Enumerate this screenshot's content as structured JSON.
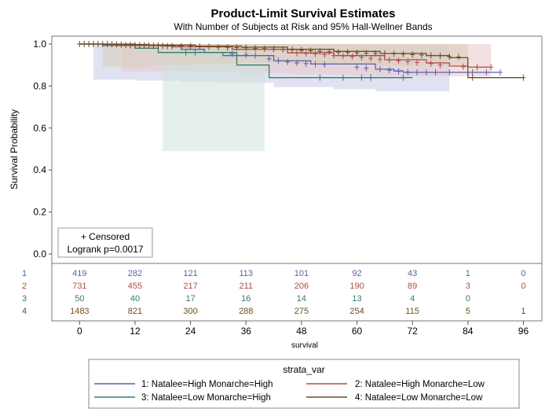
{
  "chart_data": {
    "type": "line",
    "title": "Product-Limit Survival Estimates",
    "subtitle": "With Number of Subjects at Risk and 95% Hall-Wellner Bands",
    "xlabel": "survival",
    "ylabel": "Survival Probability",
    "xlim": [
      -6,
      100
    ],
    "ylim": [
      0,
      1.0
    ],
    "xticks": [
      0,
      12,
      24,
      36,
      48,
      60,
      72,
      84,
      96
    ],
    "yticks": [
      0.0,
      0.2,
      0.4,
      0.6,
      0.8,
      1.0
    ],
    "inset": {
      "censored_label": "+ Censored",
      "logrank_label": "Logrank p=0.0017"
    },
    "legend": {
      "title": "strata_var"
    },
    "series": [
      {
        "id": "1",
        "name": "1: Natalee=High Monarche=High",
        "color": "#5a5fb0",
        "band_color": "#c9cbe6",
        "at_risk": [
          "419",
          "282",
          "121",
          "113",
          "101",
          "92",
          "43",
          "1",
          "0"
        ],
        "curve": [
          [
            0,
            1.0
          ],
          [
            5,
            0.993
          ],
          [
            22,
            0.975
          ],
          [
            27,
            0.96
          ],
          [
            31,
            0.945
          ],
          [
            42,
            0.92
          ],
          [
            50,
            0.905
          ],
          [
            64,
            0.88
          ],
          [
            68,
            0.872
          ],
          [
            70,
            0.865
          ],
          [
            91,
            0.865
          ]
        ],
        "band": [
          [
            3,
            0.83
          ],
          [
            12,
            0.83
          ],
          [
            22,
            0.826
          ],
          [
            30,
            0.82
          ],
          [
            42,
            0.815
          ],
          [
            55,
            0.795
          ],
          [
            64,
            0.785
          ],
          [
            70,
            0.775
          ],
          [
            80,
            0.775
          ]
        ],
        "censored": [
          [
            33,
            0.953
          ],
          [
            36,
            0.948
          ],
          [
            38,
            0.945
          ],
          [
            41,
            0.93
          ],
          [
            43,
            0.92
          ],
          [
            45,
            0.915
          ],
          [
            47,
            0.91
          ],
          [
            49,
            0.907
          ],
          [
            51,
            0.905
          ],
          [
            53,
            0.903
          ],
          [
            60,
            0.89
          ],
          [
            62,
            0.885
          ],
          [
            65,
            0.88
          ],
          [
            67,
            0.875
          ],
          [
            69,
            0.87
          ],
          [
            71,
            0.867
          ],
          [
            73,
            0.865
          ],
          [
            75,
            0.865
          ],
          [
            77,
            0.865
          ],
          [
            80,
            0.865
          ],
          [
            85,
            0.865
          ],
          [
            88,
            0.865
          ],
          [
            91,
            0.865
          ]
        ]
      },
      {
        "id": "2",
        "name": "2: Natalee=High Monarche=Low",
        "color": "#b24a4a",
        "band_color": "#e9c9c9",
        "at_risk": [
          "731",
          "455",
          "217",
          "211",
          "206",
          "190",
          "89",
          "3",
          "0"
        ],
        "curve": [
          [
            0,
            1.0
          ],
          [
            8,
            0.994
          ],
          [
            20,
            0.987
          ],
          [
            33,
            0.975
          ],
          [
            45,
            0.958
          ],
          [
            55,
            0.945
          ],
          [
            66,
            0.925
          ],
          [
            75,
            0.91
          ],
          [
            80,
            0.895
          ],
          [
            84,
            0.89
          ],
          [
            89,
            0.89
          ]
        ],
        "band": [
          [
            9,
            0.87
          ],
          [
            20,
            0.87
          ],
          [
            34,
            0.866
          ],
          [
            46,
            0.86
          ],
          [
            58,
            0.855
          ],
          [
            66,
            0.85
          ],
          [
            75,
            0.846
          ],
          [
            84,
            0.846
          ],
          [
            89,
            0.846
          ]
        ],
        "censored": [
          [
            47,
            0.957
          ],
          [
            49,
            0.955
          ],
          [
            51,
            0.953
          ],
          [
            53,
            0.95
          ],
          [
            55,
            0.945
          ],
          [
            57,
            0.943
          ],
          [
            59,
            0.94
          ],
          [
            61,
            0.937
          ],
          [
            63,
            0.932
          ],
          [
            65,
            0.928
          ],
          [
            67,
            0.924
          ],
          [
            69,
            0.92
          ],
          [
            71,
            0.916
          ],
          [
            73,
            0.912
          ],
          [
            76,
            0.907
          ],
          [
            78,
            0.9
          ],
          [
            83,
            0.892
          ],
          [
            86,
            0.89
          ],
          [
            89,
            0.89
          ]
        ]
      },
      {
        "id": "3",
        "name": "3: Natalee=Low Monarche=High",
        "color": "#2f7f72",
        "band_color": "#cfe1dc",
        "at_risk": [
          "50",
          "40",
          "17",
          "16",
          "14",
          "13",
          "4",
          "0",
          ""
        ],
        "curve": [
          [
            0,
            1.0
          ],
          [
            12,
            0.98
          ],
          [
            17,
            0.96
          ],
          [
            34,
            0.9
          ],
          [
            41,
            0.84
          ],
          [
            50,
            0.84
          ],
          [
            72,
            0.84
          ]
        ],
        "band": [
          [
            18,
            0.49
          ],
          [
            40,
            0.49
          ]
        ],
        "censored": [
          [
            23,
            0.96
          ],
          [
            25,
            0.96
          ],
          [
            52,
            0.84
          ],
          [
            57,
            0.84
          ],
          [
            61,
            0.84
          ],
          [
            63,
            0.84
          ],
          [
            70,
            0.84
          ]
        ]
      },
      {
        "id": "4",
        "name": "4: Natalee=Low Monarche=Low",
        "color": "#6e4c20",
        "band_color": "#d9cdb9",
        "at_risk": [
          "1483",
          "821",
          "300",
          "288",
          "275",
          "254",
          "115",
          "5",
          "1"
        ],
        "curve": [
          [
            0,
            1.0
          ],
          [
            5,
            0.998
          ],
          [
            15,
            0.995
          ],
          [
            25,
            0.99
          ],
          [
            35,
            0.985
          ],
          [
            45,
            0.975
          ],
          [
            55,
            0.965
          ],
          [
            65,
            0.955
          ],
          [
            75,
            0.945
          ],
          [
            80,
            0.935
          ],
          [
            84,
            0.84
          ],
          [
            96,
            0.84
          ]
        ],
        "band": [
          [
            5,
            0.89
          ],
          [
            15,
            0.89
          ],
          [
            25,
            0.9
          ],
          [
            35,
            0.905
          ],
          [
            45,
            0.91
          ],
          [
            55,
            0.905
          ],
          [
            65,
            0.9
          ],
          [
            75,
            0.895
          ],
          [
            82,
            0.9
          ],
          [
            84,
            0.9
          ]
        ],
        "censored": [
          [
            0,
            1.0
          ],
          [
            1,
            1.0
          ],
          [
            2,
            1.0
          ],
          [
            3,
            1.0
          ],
          [
            4,
            1.0
          ],
          [
            5,
            1.0
          ],
          [
            6,
            1.0
          ],
          [
            7,
            0.999
          ],
          [
            8,
            0.998
          ],
          [
            9,
            0.997
          ],
          [
            10,
            0.996
          ],
          [
            11,
            0.995
          ],
          [
            12,
            0.995
          ],
          [
            13,
            0.995
          ],
          [
            14,
            0.994
          ],
          [
            15,
            0.993
          ],
          [
            16,
            0.992
          ],
          [
            17,
            0.992
          ],
          [
            18,
            0.991
          ],
          [
            19,
            0.99
          ],
          [
            20,
            0.99
          ],
          [
            22,
            0.99
          ],
          [
            24,
            0.99
          ],
          [
            26,
            0.988
          ],
          [
            28,
            0.987
          ],
          [
            30,
            0.985
          ],
          [
            32,
            0.984
          ],
          [
            34,
            0.983
          ],
          [
            36,
            0.982
          ],
          [
            38,
            0.98
          ],
          [
            40,
            0.978
          ],
          [
            42,
            0.976
          ],
          [
            44,
            0.975
          ],
          [
            46,
            0.973
          ],
          [
            48,
            0.97
          ],
          [
            50,
            0.968
          ],
          [
            52,
            0.965
          ],
          [
            54,
            0.963
          ],
          [
            56,
            0.961
          ],
          [
            58,
            0.96
          ],
          [
            60,
            0.958
          ],
          [
            62,
            0.957
          ],
          [
            64,
            0.956
          ],
          [
            66,
            0.955
          ],
          [
            68,
            0.953
          ],
          [
            70,
            0.952
          ],
          [
            72,
            0.95
          ],
          [
            74,
            0.948
          ],
          [
            76,
            0.946
          ],
          [
            78,
            0.944
          ],
          [
            80,
            0.94
          ],
          [
            82,
            0.938
          ],
          [
            85,
            0.84
          ],
          [
            96,
            0.84
          ]
        ]
      }
    ]
  }
}
